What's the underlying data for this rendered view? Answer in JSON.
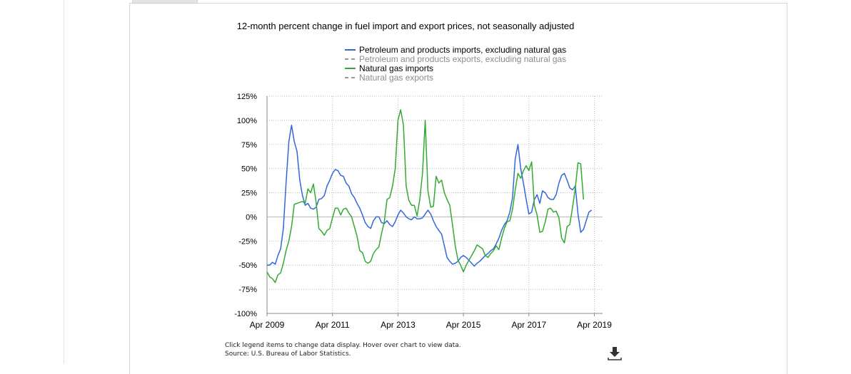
{
  "chart_data": {
    "type": "line",
    "title": "12-month percent change in fuel import and export prices, not seasonally adjusted",
    "ylim": [
      -100,
      125
    ],
    "yticks": [
      "125%",
      "100%",
      "75%",
      "50%",
      "25%",
      "0%",
      "-25%",
      "-50%",
      "-75%",
      "-100%"
    ],
    "ytick_values": [
      125,
      100,
      75,
      50,
      25,
      0,
      -25,
      -50,
      -75,
      -100
    ],
    "xlim": [
      "2009-04",
      "2019-07"
    ],
    "xticks": [
      "Apr 2009",
      "Apr 2011",
      "Apr 2013",
      "Apr 2015",
      "Apr 2017",
      "Apr 2019"
    ],
    "xtick_values": [
      "2009-04",
      "2011-04",
      "2013-04",
      "2015-04",
      "2017-04",
      "2019-04"
    ],
    "grid": true,
    "legend_position": "top",
    "series": [
      {
        "name": "Petroleum and products imports, excluding natural gas",
        "color": "#3366dd",
        "dash": false,
        "visible": true,
        "points": [
          [
            "2009-04",
            -50
          ],
          [
            "2009-05",
            -50
          ],
          [
            "2009-06",
            -47
          ],
          [
            "2009-07",
            -49
          ],
          [
            "2009-08",
            -40
          ],
          [
            "2009-09",
            -33
          ],
          [
            "2009-10",
            -12
          ],
          [
            "2009-11",
            35
          ],
          [
            "2009-12",
            78
          ],
          [
            "2010-01",
            95
          ],
          [
            "2010-02",
            78
          ],
          [
            "2010-03",
            68
          ],
          [
            "2010-04",
            38
          ],
          [
            "2010-05",
            22
          ],
          [
            "2010-06",
            12
          ],
          [
            "2010-07",
            14
          ],
          [
            "2010-08",
            9
          ],
          [
            "2010-09",
            8
          ],
          [
            "2010-10",
            10
          ],
          [
            "2010-11",
            18
          ],
          [
            "2010-12",
            19
          ],
          [
            "2011-01",
            22
          ],
          [
            "2011-02",
            32
          ],
          [
            "2011-03",
            38
          ],
          [
            "2011-04",
            45
          ],
          [
            "2011-05",
            49
          ],
          [
            "2011-06",
            48
          ],
          [
            "2011-07",
            43
          ],
          [
            "2011-08",
            42
          ],
          [
            "2011-09",
            35
          ],
          [
            "2011-10",
            32
          ],
          [
            "2011-11",
            24
          ],
          [
            "2011-12",
            20
          ],
          [
            "2012-01",
            14
          ],
          [
            "2012-02",
            9
          ],
          [
            "2012-03",
            2
          ],
          [
            "2012-04",
            -6
          ],
          [
            "2012-05",
            -10
          ],
          [
            "2012-06",
            -12
          ],
          [
            "2012-07",
            -4
          ],
          [
            "2012-08",
            0
          ],
          [
            "2012-09",
            0
          ],
          [
            "2012-10",
            -6
          ],
          [
            "2012-11",
            -7
          ],
          [
            "2012-12",
            -4
          ],
          [
            "2013-01",
            -8
          ],
          [
            "2013-02",
            -10
          ],
          [
            "2013-03",
            -5
          ],
          [
            "2013-04",
            2
          ],
          [
            "2013-05",
            7
          ],
          [
            "2013-06",
            4
          ],
          [
            "2013-07",
            0
          ],
          [
            "2013-08",
            -2
          ],
          [
            "2013-09",
            -3
          ],
          [
            "2013-10",
            0
          ],
          [
            "2013-11",
            -2
          ],
          [
            "2013-12",
            -2
          ],
          [
            "2014-01",
            -1
          ],
          [
            "2014-02",
            3
          ],
          [
            "2014-03",
            7
          ],
          [
            "2014-04",
            3
          ],
          [
            "2014-05",
            -4
          ],
          [
            "2014-06",
            -10
          ],
          [
            "2014-07",
            -14
          ],
          [
            "2014-08",
            -18
          ],
          [
            "2014-09",
            -30
          ],
          [
            "2014-10",
            -42
          ],
          [
            "2014-11",
            -46
          ],
          [
            "2014-12",
            -49
          ],
          [
            "2015-01",
            -48
          ],
          [
            "2015-02",
            -46
          ],
          [
            "2015-03",
            -42
          ],
          [
            "2015-04",
            -40
          ],
          [
            "2015-05",
            -42
          ],
          [
            "2015-06",
            -45
          ],
          [
            "2015-07",
            -48
          ],
          [
            "2015-08",
            -51
          ],
          [
            "2015-09",
            -48
          ],
          [
            "2015-10",
            -46
          ],
          [
            "2015-11",
            -43
          ],
          [
            "2015-12",
            -40
          ],
          [
            "2016-01",
            -38
          ],
          [
            "2016-02",
            -35
          ],
          [
            "2016-03",
            -33
          ],
          [
            "2016-04",
            -28
          ],
          [
            "2016-05",
            -22
          ],
          [
            "2016-06",
            -14
          ],
          [
            "2016-07",
            -8
          ],
          [
            "2016-08",
            -4
          ],
          [
            "2016-09",
            5
          ],
          [
            "2016-10",
            20
          ],
          [
            "2016-11",
            60
          ],
          [
            "2016-12",
            75
          ],
          [
            "2017-01",
            50
          ],
          [
            "2017-02",
            35
          ],
          [
            "2017-03",
            18
          ],
          [
            "2017-04",
            3
          ],
          [
            "2017-05",
            5
          ],
          [
            "2017-06",
            18
          ],
          [
            "2017-07",
            23
          ],
          [
            "2017-08",
            14
          ],
          [
            "2017-09",
            27
          ],
          [
            "2017-10",
            25
          ],
          [
            "2017-11",
            20
          ],
          [
            "2017-12",
            18
          ],
          [
            "2018-01",
            18
          ],
          [
            "2018-02",
            23
          ],
          [
            "2018-03",
            35
          ],
          [
            "2018-04",
            43
          ],
          [
            "2018-05",
            45
          ],
          [
            "2018-06",
            38
          ],
          [
            "2018-07",
            30
          ],
          [
            "2018-08",
            28
          ],
          [
            "2018-09",
            32
          ],
          [
            "2018-10",
            3
          ],
          [
            "2018-11",
            -16
          ],
          [
            "2018-12",
            -13
          ],
          [
            "2019-01",
            -4
          ],
          [
            "2019-02",
            5
          ],
          [
            "2019-03",
            7
          ]
        ]
      },
      {
        "name": "Petroleum and products exports, excluding natural gas",
        "color": "#999999",
        "dash": true,
        "visible": false,
        "points": []
      },
      {
        "name": "Natural gas imports",
        "color": "#33aa33",
        "dash": false,
        "visible": true,
        "points": [
          [
            "2009-04",
            -57
          ],
          [
            "2009-05",
            -62
          ],
          [
            "2009-06",
            -64
          ],
          [
            "2009-07",
            -68
          ],
          [
            "2009-08",
            -60
          ],
          [
            "2009-09",
            -58
          ],
          [
            "2009-10",
            -48
          ],
          [
            "2009-11",
            -35
          ],
          [
            "2009-12",
            -25
          ],
          [
            "2010-01",
            -10
          ],
          [
            "2010-02",
            13
          ],
          [
            "2010-03",
            14
          ],
          [
            "2010-04",
            15
          ],
          [
            "2010-05",
            16
          ],
          [
            "2010-06",
            14
          ],
          [
            "2010-07",
            29
          ],
          [
            "2010-08",
            25
          ],
          [
            "2010-09",
            34
          ],
          [
            "2010-10",
            15
          ],
          [
            "2010-11",
            -12
          ],
          [
            "2010-12",
            -15
          ],
          [
            "2011-01",
            -19
          ],
          [
            "2011-02",
            -14
          ],
          [
            "2011-03",
            -12
          ],
          [
            "2011-04",
            -1
          ],
          [
            "2011-05",
            9
          ],
          [
            "2011-06",
            9
          ],
          [
            "2011-07",
            2
          ],
          [
            "2011-08",
            8
          ],
          [
            "2011-09",
            9
          ],
          [
            "2011-10",
            4
          ],
          [
            "2011-11",
            0
          ],
          [
            "2011-12",
            -10
          ],
          [
            "2012-01",
            -20
          ],
          [
            "2012-02",
            -35
          ],
          [
            "2012-03",
            -37
          ],
          [
            "2012-04",
            -46
          ],
          [
            "2012-05",
            -48
          ],
          [
            "2012-06",
            -46
          ],
          [
            "2012-07",
            -38
          ],
          [
            "2012-08",
            -34
          ],
          [
            "2012-09",
            -31
          ],
          [
            "2012-10",
            -17
          ],
          [
            "2012-11",
            -5
          ],
          [
            "2012-12",
            18
          ],
          [
            "2013-01",
            20
          ],
          [
            "2013-02",
            32
          ],
          [
            "2013-03",
            50
          ],
          [
            "2013-04",
            100
          ],
          [
            "2013-05",
            111
          ],
          [
            "2013-06",
            95
          ],
          [
            "2013-07",
            32
          ],
          [
            "2013-08",
            17
          ],
          [
            "2013-09",
            12
          ],
          [
            "2013-10",
            12
          ],
          [
            "2013-11",
            1
          ],
          [
            "2013-12",
            18
          ],
          [
            "2014-01",
            45
          ],
          [
            "2014-02",
            100
          ],
          [
            "2014-03",
            27
          ],
          [
            "2014-04",
            10
          ],
          [
            "2014-05",
            11
          ],
          [
            "2014-06",
            42
          ],
          [
            "2014-07",
            35
          ],
          [
            "2014-08",
            38
          ],
          [
            "2014-09",
            25
          ],
          [
            "2014-10",
            18
          ],
          [
            "2014-11",
            12
          ],
          [
            "2014-12",
            -8
          ],
          [
            "2015-01",
            -30
          ],
          [
            "2015-02",
            -45
          ],
          [
            "2015-03",
            -50
          ],
          [
            "2015-04",
            -57
          ],
          [
            "2015-05",
            -50
          ],
          [
            "2015-06",
            -45
          ],
          [
            "2015-07",
            -40
          ],
          [
            "2015-08",
            -35
          ],
          [
            "2015-09",
            -29
          ],
          [
            "2015-10",
            -31
          ],
          [
            "2015-11",
            -33
          ],
          [
            "2015-12",
            -40
          ],
          [
            "2016-01",
            -42
          ],
          [
            "2016-02",
            -38
          ],
          [
            "2016-03",
            -35
          ],
          [
            "2016-04",
            -30
          ],
          [
            "2016-05",
            -34
          ],
          [
            "2016-06",
            -22
          ],
          [
            "2016-07",
            -12
          ],
          [
            "2016-08",
            -5
          ],
          [
            "2016-09",
            -4
          ],
          [
            "2016-10",
            8
          ],
          [
            "2016-11",
            28
          ],
          [
            "2016-12",
            45
          ],
          [
            "2017-01",
            40
          ],
          [
            "2017-02",
            48
          ],
          [
            "2017-03",
            53
          ],
          [
            "2017-04",
            48
          ],
          [
            "2017-05",
            57
          ],
          [
            "2017-06",
            12
          ],
          [
            "2017-07",
            2
          ],
          [
            "2017-08",
            -16
          ],
          [
            "2017-09",
            -15
          ],
          [
            "2017-10",
            -5
          ],
          [
            "2017-11",
            8
          ],
          [
            "2017-12",
            9
          ],
          [
            "2018-01",
            5
          ],
          [
            "2018-02",
            6
          ],
          [
            "2018-03",
            -1
          ],
          [
            "2018-04",
            -22
          ],
          [
            "2018-05",
            -27
          ],
          [
            "2018-06",
            -10
          ],
          [
            "2018-07",
            -8
          ],
          [
            "2018-08",
            10
          ],
          [
            "2018-09",
            30
          ],
          [
            "2018-10",
            56
          ],
          [
            "2018-11",
            55
          ],
          [
            "2018-12",
            18
          ]
        ]
      },
      {
        "name": "Natural gas exports",
        "color": "#999999",
        "dash": true,
        "visible": false,
        "points": []
      }
    ]
  },
  "footnote": {
    "line1": "Click legend items to change data display. Hover over chart to view data.",
    "line2": "Source: U.S. Bureau of Labor Statistics."
  },
  "icons": {
    "download": "download-icon"
  }
}
